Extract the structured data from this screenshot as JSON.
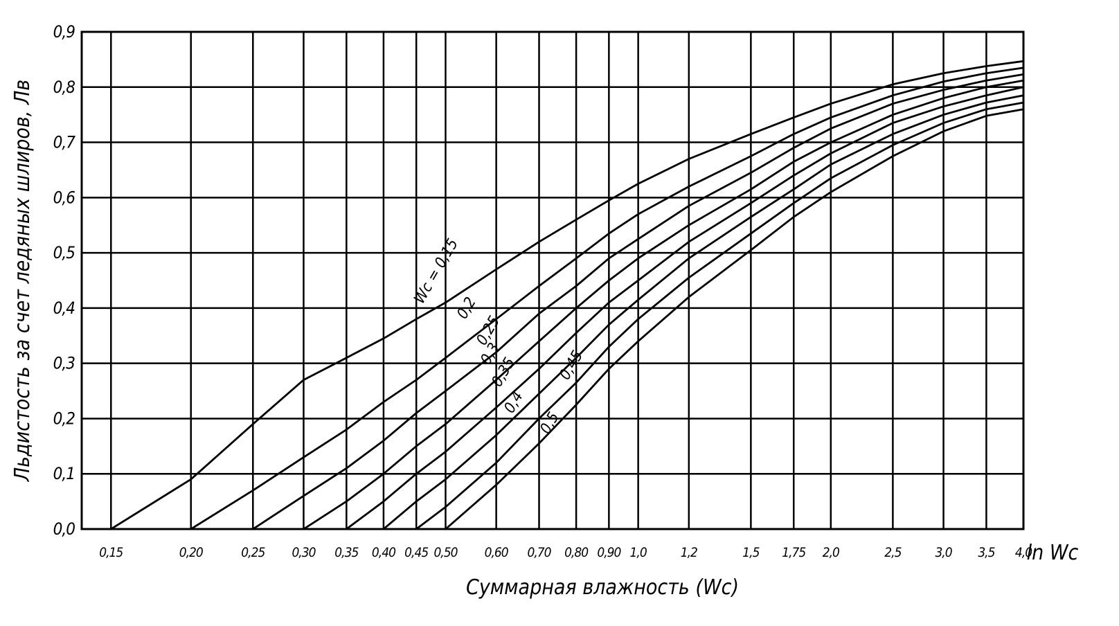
{
  "chart_data": {
    "type": "line",
    "x_title": "Суммарная влажность (Wc)",
    "x_unit_label": "ln Wc",
    "y_title": "Льдистость за счет ледяных шлиров, Лв",
    "xscale": "log",
    "grid": true,
    "x": [
      0.15,
      0.2,
      0.25,
      0.3,
      0.35,
      0.4,
      0.45,
      0.5,
      0.6,
      0.7,
      0.8,
      0.9,
      1.0,
      1.2,
      1.5,
      1.75,
      2.0,
      2.5,
      3.0,
      3.5,
      4.0
    ],
    "xlim": [
      0.135,
      4.0
    ],
    "xticks": [
      {
        "value": 0.15,
        "label": "0,15"
      },
      {
        "value": 0.2,
        "label": "0,20"
      },
      {
        "value": 0.25,
        "label": "0,25"
      },
      {
        "value": 0.3,
        "label": "0,30"
      },
      {
        "value": 0.35,
        "label": "0,35"
      },
      {
        "value": 0.4,
        "label": "0,40"
      },
      {
        "value": 0.45,
        "label": "0,45"
      },
      {
        "value": 0.5,
        "label": "0,50"
      },
      {
        "value": 0.6,
        "label": "0,60"
      },
      {
        "value": 0.7,
        "label": "0,70"
      },
      {
        "value": 0.8,
        "label": "0,80"
      },
      {
        "value": 0.9,
        "label": "0,90"
      },
      {
        "value": 1.0,
        "label": "1,0"
      },
      {
        "value": 1.2,
        "label": "1,2"
      },
      {
        "value": 1.5,
        "label": "1,5"
      },
      {
        "value": 1.75,
        "label": "1,75"
      },
      {
        "value": 2.0,
        "label": "2,0"
      },
      {
        "value": 2.5,
        "label": "2,5"
      },
      {
        "value": 3.0,
        "label": "3,0"
      },
      {
        "value": 3.5,
        "label": "3,5"
      },
      {
        "value": 4.0,
        "label": "4,0"
      }
    ],
    "ylim": [
      0,
      0.9
    ],
    "yticks": [
      {
        "value": 0,
        "label": "0,0"
      },
      {
        "value": 0.1,
        "label": "0,1"
      },
      {
        "value": 0.2,
        "label": "0,2"
      },
      {
        "value": 0.3,
        "label": "0,3"
      },
      {
        "value": 0.4,
        "label": "0,4"
      },
      {
        "value": 0.5,
        "label": "0,5"
      },
      {
        "value": 0.6,
        "label": "0,6"
      },
      {
        "value": 0.7,
        "label": "0,7"
      },
      {
        "value": 0.8,
        "label": "0,8"
      },
      {
        "value": 0.9,
        "label": "0,9"
      }
    ],
    "series": [
      {
        "name": "Wc = 0,15",
        "color": "#000000",
        "values": [
          0.0,
          0.09,
          0.19,
          0.27,
          0.31,
          0.345,
          0.38,
          0.41,
          0.47,
          0.52,
          0.56,
          0.595,
          0.625,
          0.67,
          0.715,
          0.745,
          0.77,
          0.805,
          0.825,
          0.838,
          0.847
        ]
      },
      {
        "name": "0,2",
        "color": "#000000",
        "values": [
          null,
          0.0,
          0.07,
          0.13,
          0.18,
          0.23,
          0.27,
          0.31,
          0.38,
          0.44,
          0.49,
          0.535,
          0.57,
          0.62,
          0.675,
          0.715,
          0.745,
          0.785,
          0.81,
          0.825,
          0.835
        ]
      },
      {
        "name": "0,25",
        "color": "#000000",
        "values": [
          null,
          null,
          0.0,
          0.06,
          0.11,
          0.16,
          0.21,
          0.25,
          0.32,
          0.39,
          0.44,
          0.49,
          0.525,
          0.585,
          0.645,
          0.69,
          0.725,
          0.77,
          0.795,
          0.812,
          0.823
        ]
      },
      {
        "name": "0,3",
        "color": "#000000",
        "values": [
          null,
          null,
          null,
          0.0,
          0.05,
          0.1,
          0.15,
          0.19,
          0.27,
          0.34,
          0.4,
          0.45,
          0.49,
          0.55,
          0.615,
          0.665,
          0.7,
          0.75,
          0.78,
          0.8,
          0.812
        ]
      },
      {
        "name": "0,35",
        "color": "#000000",
        "values": [
          null,
          null,
          null,
          null,
          0.0,
          0.05,
          0.1,
          0.14,
          0.22,
          0.29,
          0.355,
          0.41,
          0.45,
          0.52,
          0.59,
          0.64,
          0.68,
          0.735,
          0.765,
          0.785,
          0.8
        ]
      },
      {
        "name": "0,4",
        "color": "#000000",
        "values": [
          null,
          null,
          null,
          null,
          null,
          0.0,
          0.05,
          0.09,
          0.17,
          0.245,
          0.31,
          0.37,
          0.415,
          0.49,
          0.565,
          0.615,
          0.66,
          0.715,
          0.75,
          0.772,
          0.785
        ]
      },
      {
        "name": "0,45",
        "color": "#000000",
        "values": [
          null,
          null,
          null,
          null,
          null,
          null,
          0.0,
          0.04,
          0.12,
          0.2,
          0.265,
          0.33,
          0.38,
          0.455,
          0.535,
          0.59,
          0.635,
          0.695,
          0.735,
          0.76,
          0.772
        ]
      },
      {
        "name": "0,5",
        "color": "#000000",
        "values": [
          null,
          null,
          null,
          null,
          null,
          null,
          null,
          0.0,
          0.08,
          0.155,
          0.225,
          0.29,
          0.34,
          0.42,
          0.505,
          0.565,
          0.61,
          0.675,
          0.72,
          0.748,
          0.76
        ]
      }
    ]
  }
}
